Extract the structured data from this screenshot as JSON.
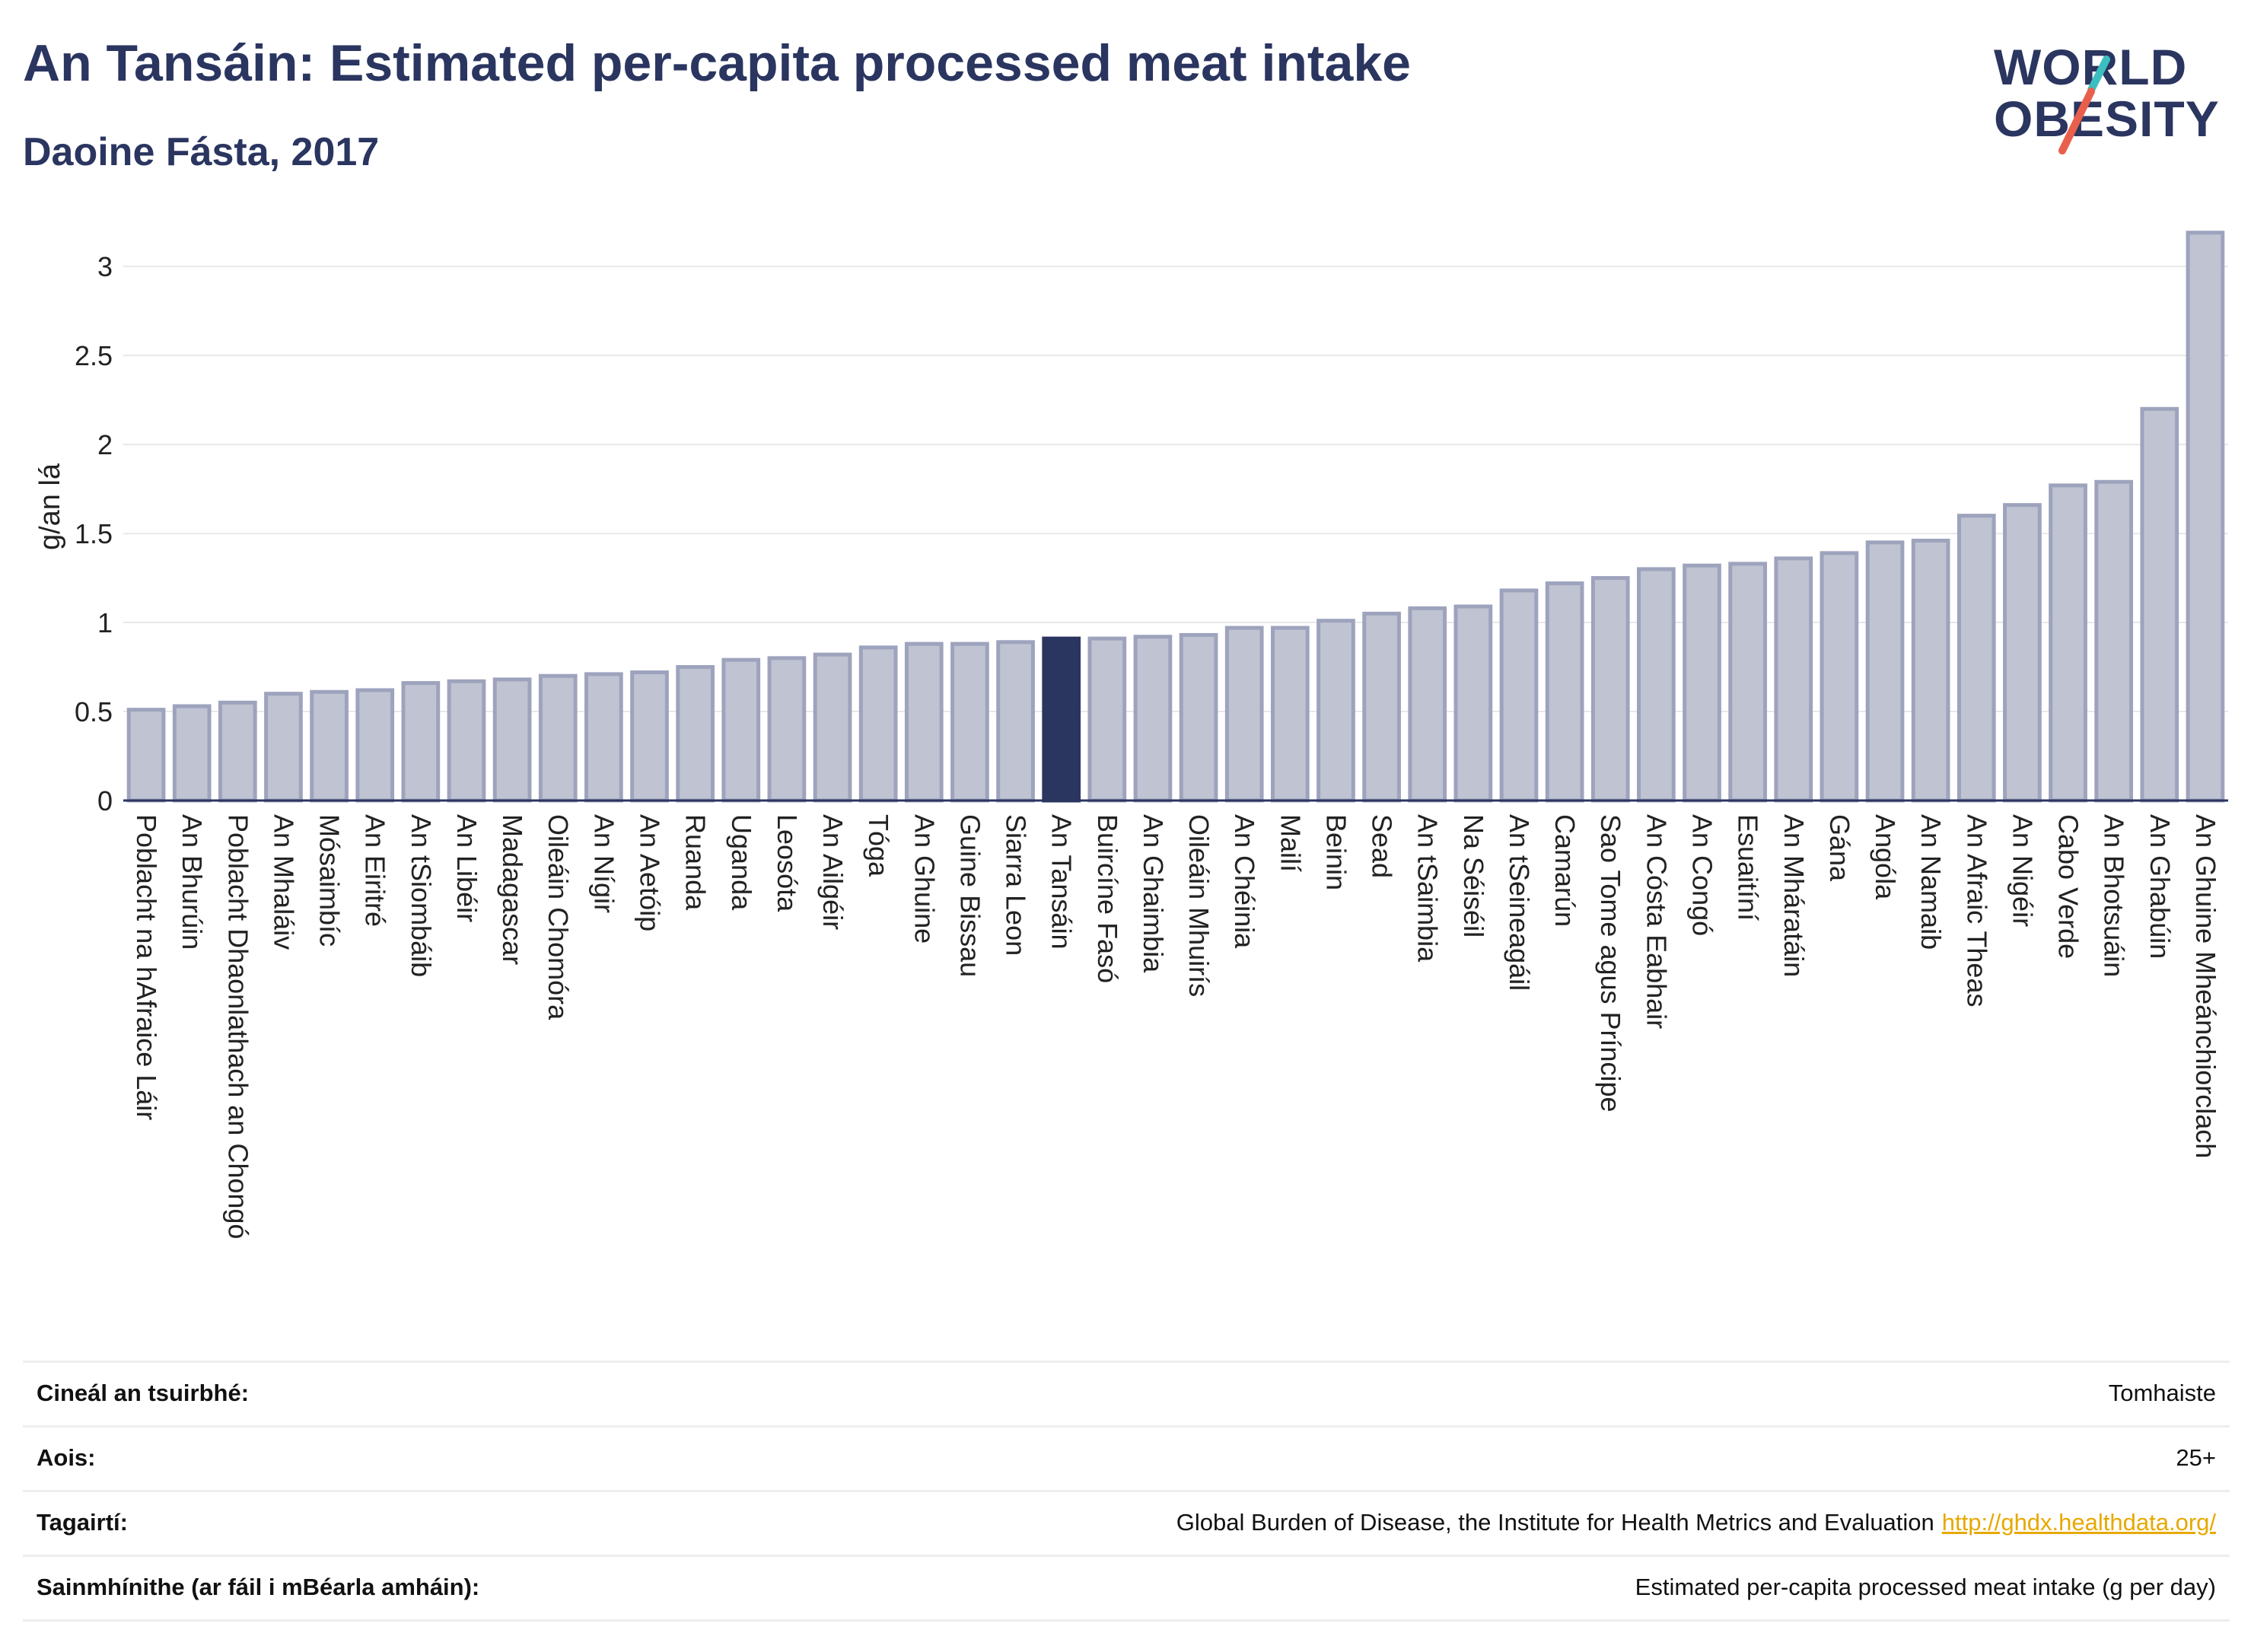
{
  "header": {
    "title": "An Tansáin: Estimated per-capita processed meat intake",
    "subtitle": "Daoine Fásta, 2017"
  },
  "logo": {
    "line1": "WORLD",
    "line2": "OBESITY",
    "accent_teal": "#3bbfc0",
    "accent_red": "#e8604c"
  },
  "chart_data": {
    "type": "bar",
    "ylabel": "g/an lá",
    "ylim": [
      0,
      3.3
    ],
    "yticks": [
      0,
      0.5,
      1,
      1.5,
      2,
      2.5,
      3
    ],
    "ytick_labels": [
      "0",
      "0.5",
      "1",
      "1.5",
      "2",
      "2.5",
      "3"
    ],
    "grid": true,
    "bar_color": "#bfc3d2",
    "bar_border_color": "#9ea3bd",
    "highlight_color": "#2a3560",
    "highlight_category": "An Tansáin",
    "categories": [
      "Poblacht na hAfraice Láir",
      "An Bhurúin",
      "Poblacht Dhaonlathach an Chongó",
      "An Mhaláiv",
      "Mósaimbíc",
      "An Eiritré",
      "An tSiombáib",
      "An Libéir",
      "Madagascar",
      "Oileáin Chomóra",
      "An Nígir",
      "An Aetóip",
      "Ruanda",
      "Uganda",
      "Leosóta",
      "An Ailgéir",
      "Tóga",
      "An Ghuine",
      "Guine Bissau",
      "Siarra Leon",
      "An Tansáin",
      "Buircíne Fasó",
      "An Ghaimbia",
      "Oileáin Mhuirís",
      "An Chéinia",
      "Mailí",
      "Beinin",
      "Sead",
      "An tSaimbia",
      "Na Séiséil",
      "An tSeineagáil",
      "Camarún",
      "Sao Tome agus Príncipe",
      "An Cósta Eabhair",
      "An Congó",
      "Esuaitíní",
      "An Mháratáin",
      "Gána",
      "Angóla",
      "An Namaib",
      "An Afraic Theas",
      "An Nigéir",
      "Cabo Verde",
      "An Bhotsuáin",
      "An Ghabúin",
      "An Ghuine Mheánchiorclach"
    ],
    "values": [
      0.51,
      0.53,
      0.55,
      0.6,
      0.61,
      0.62,
      0.66,
      0.67,
      0.68,
      0.7,
      0.71,
      0.72,
      0.75,
      0.79,
      0.8,
      0.82,
      0.86,
      0.88,
      0.88,
      0.89,
      0.91,
      0.91,
      0.92,
      0.93,
      0.97,
      0.97,
      1.01,
      1.05,
      1.08,
      1.09,
      1.18,
      1.22,
      1.25,
      1.3,
      1.32,
      1.33,
      1.36,
      1.39,
      1.45,
      1.46,
      1.6,
      1.66,
      1.77,
      1.79,
      2.2,
      3.19
    ]
  },
  "info": {
    "rows": [
      {
        "label": "Cineál an tsuirbhé:",
        "value": "Tomhaiste"
      },
      {
        "label": "Aois:",
        "value": "25+"
      },
      {
        "label": "Tagairtí:",
        "value": "Global Burden of Disease, the Institute for Health Metrics and Evaluation",
        "link": "http://ghdx.healthdata.org/"
      },
      {
        "label": "Sainmhínithe (ar fáil i mBéarla amháin):",
        "value": "Estimated per-capita processed meat intake (g per day)"
      }
    ]
  }
}
